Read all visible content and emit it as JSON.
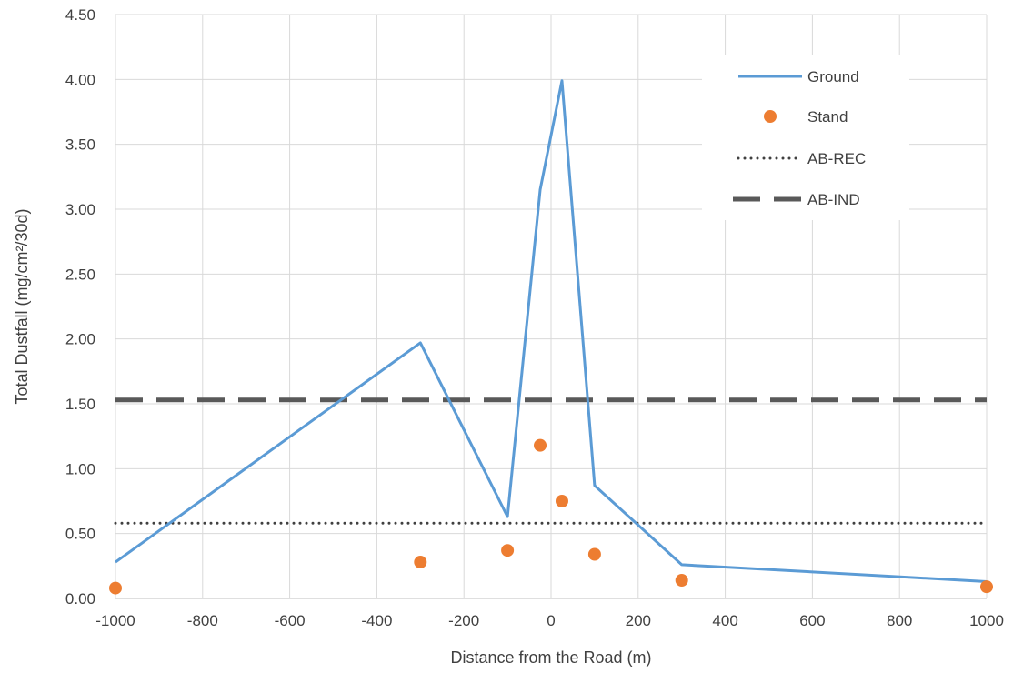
{
  "chart_data": {
    "type": "line",
    "xlabel": "Distance from the Road (m)",
    "ylabel": "Total Dustfall (mg/cm²/30d)",
    "xlim": [
      -1000,
      1000
    ],
    "ylim": [
      0,
      4.5
    ],
    "x_ticks": [
      -1000,
      -800,
      -600,
      -400,
      -200,
      0,
      200,
      400,
      600,
      800,
      1000
    ],
    "x_tick_labels": [
      "-1000",
      "-800",
      "-600",
      "-400",
      "-200",
      "0",
      "200",
      "400",
      "600",
      "800",
      "1000"
    ],
    "y_ticks": [
      0,
      0.5,
      1,
      1.5,
      2,
      2.5,
      3,
      3.5,
      4,
      4.5
    ],
    "y_tick_labels": [
      "0.00",
      "0.50",
      "1.00",
      "1.50",
      "2.00",
      "2.50",
      "3.00",
      "3.50",
      "4.00",
      "4.50"
    ],
    "grid": true,
    "legend_position": "top-right",
    "series": [
      {
        "name": "Ground",
        "kind": "line",
        "color": "#5b9bd5",
        "x": [
          -1000,
          -300,
          -100,
          -25,
          25,
          100,
          300,
          1000
        ],
        "y": [
          0.28,
          1.97,
          0.63,
          3.15,
          3.99,
          0.87,
          0.26,
          0.13
        ]
      },
      {
        "name": "Stand",
        "kind": "scatter",
        "color": "#ed7d31",
        "x": [
          -1000,
          -300,
          -100,
          -25,
          25,
          100,
          300,
          1000
        ],
        "y": [
          0.08,
          0.28,
          0.37,
          1.18,
          0.75,
          0.34,
          0.14,
          0.09
        ]
      },
      {
        "name": "AB-REC",
        "kind": "hline",
        "style": "dotted",
        "color": "#404040",
        "y": 0.58
      },
      {
        "name": "AB-IND",
        "kind": "hline",
        "style": "dashed",
        "color": "#595959",
        "y": 1.53
      }
    ]
  }
}
